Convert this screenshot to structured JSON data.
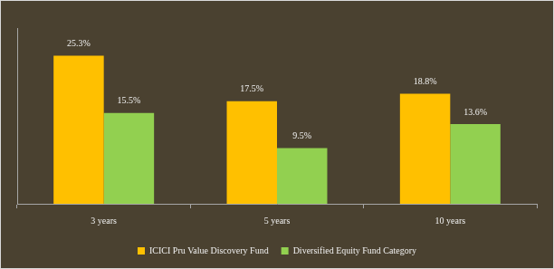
{
  "chart_data": {
    "type": "bar",
    "categories": [
      "3 years",
      "5 years",
      "10 years"
    ],
    "series": [
      {
        "name": "ICICI Pru Value Discovery Fund",
        "color": "#ffc000",
        "values": [
          25.3,
          17.5,
          18.8
        ],
        "value_labels": [
          "25.3%",
          "17.5%",
          "18.8%"
        ]
      },
      {
        "name": "Diversified Equity Fund Category",
        "color": "#92d050",
        "values": [
          15.5,
          9.5,
          13.6
        ],
        "value_labels": [
          "15.5%",
          "9.5%",
          "13.6%"
        ]
      }
    ],
    "ylim": [
      0,
      30
    ],
    "grid": false,
    "legend": "bottom",
    "data_labels": true,
    "tick_labels": "x"
  }
}
